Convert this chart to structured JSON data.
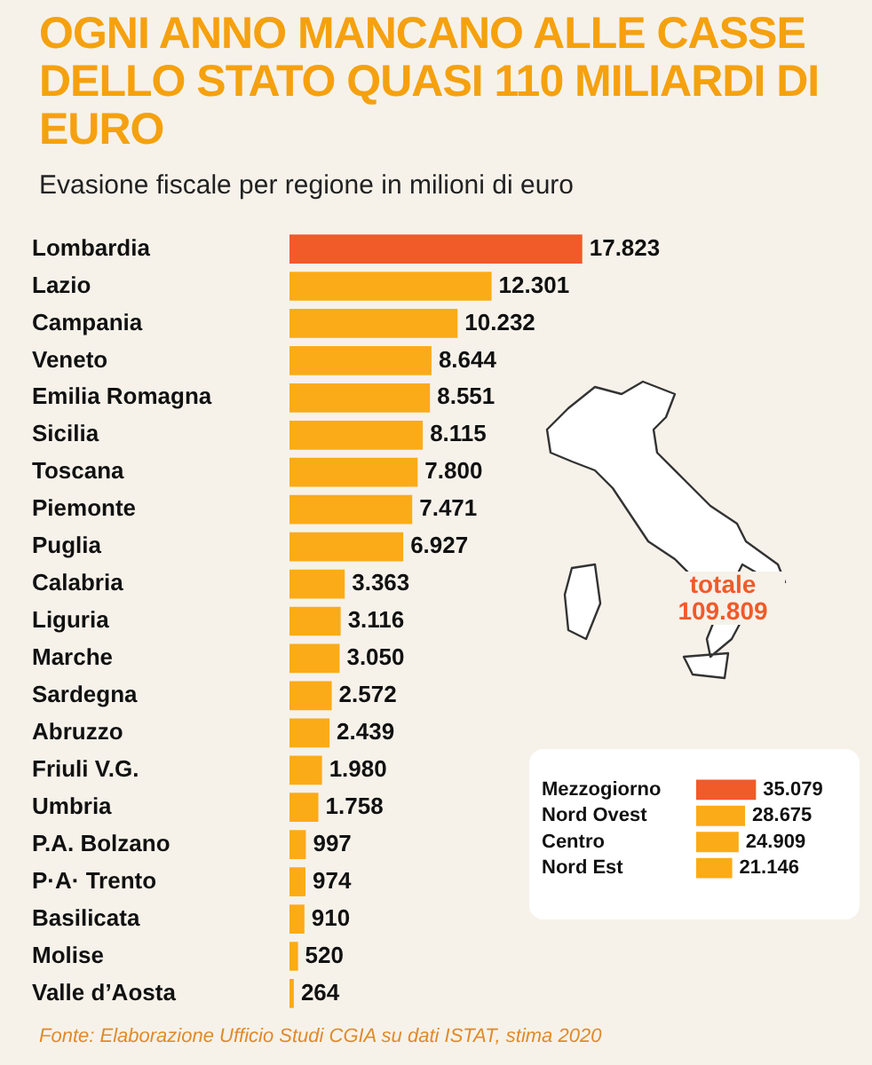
{
  "chart_data": [
    {
      "type": "bar",
      "orientation": "horizontal",
      "title": "OGNI ANNO MANCANO ALLE CASSE DELLO STATO QUASI 110 MILIARDI DI EURO",
      "subtitle": "Evasione fiscale per regione in milioni di euro",
      "categories": [
        "Lombardia",
        "Lazio",
        "Campania",
        "Veneto",
        "Emilia Romagna",
        "Sicilia",
        "Toscana",
        "Piemonte",
        "Puglia",
        "Calabria",
        "Liguria",
        "Marche",
        "Sardegna",
        "Abruzzo",
        "Friuli V.G.",
        "Umbria",
        "P.A. Bolzano",
        "P·A· Trento",
        "Basilicata",
        "Molise",
        "Valle d’Aosta"
      ],
      "values": [
        17823,
        12301,
        10232,
        8644,
        8551,
        8115,
        7800,
        7471,
        6927,
        3363,
        3116,
        3050,
        2572,
        2439,
        1980,
        1758,
        997,
        974,
        910,
        520,
        264
      ],
      "value_labels": [
        "17.823",
        "12.301",
        "10.232",
        "8.644",
        "8.551",
        "8.115",
        "7.800",
        "7.471",
        "6.927",
        "3.363",
        "3.116",
        "3.050",
        "2.572",
        "2.439",
        "1.980",
        "1.758",
        "997",
        "974",
        "910",
        "520",
        "264"
      ],
      "colors": [
        "#f15a29",
        "#fbab18",
        "#fbab18",
        "#fbab18",
        "#fbab18",
        "#fbab18",
        "#fbab18",
        "#fbab18",
        "#fbab18",
        "#fbab18",
        "#fbab18",
        "#fbab18",
        "#fbab18",
        "#fbab18",
        "#fbab18",
        "#fbab18",
        "#fbab18",
        "#fbab18",
        "#fbab18",
        "#fbab18",
        "#fbab18"
      ],
      "tick_labels": "y",
      "grid": false,
      "legend": false,
      "annotations": [
        "totale 109.809",
        "Fonte: Elaborazione Ufficio Studi CGIA su dati ISTAT, stima 2020"
      ]
    },
    {
      "type": "bar",
      "orientation": "horizontal",
      "categories": [
        "Mezzogiorno",
        "Nord Ovest",
        "Centro",
        "Nord Est"
      ],
      "values": [
        35079,
        28675,
        24909,
        21146
      ],
      "value_labels": [
        "35.079",
        "28.675",
        "24.909",
        "21.146"
      ],
      "colors": [
        "#f15a29",
        "#fbab18",
        "#fbab18",
        "#fbab18"
      ],
      "tick_labels": "y",
      "grid": false,
      "legend": false
    }
  ]
}
